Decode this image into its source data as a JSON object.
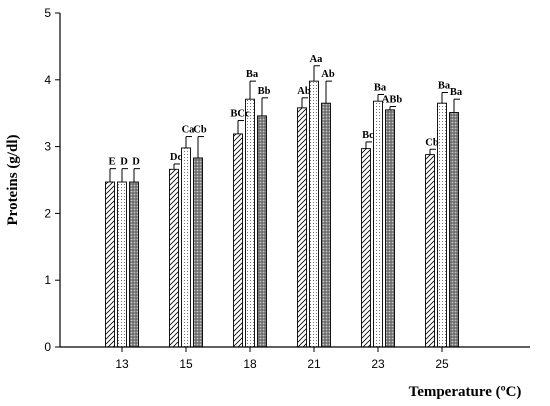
{
  "chart_data": {
    "type": "bar",
    "xlabel": "Temperature (ºC)",
    "ylabel": "Proteins (g/dl)",
    "ylim": [
      0,
      5
    ],
    "yticks": [
      0,
      1,
      2,
      3,
      4,
      5
    ],
    "categories": [
      "13",
      "15",
      "18",
      "21",
      "23",
      "25"
    ],
    "grid": false,
    "legend": "none",
    "series": [
      {
        "pattern": "diagonal-hatch",
        "values": [
          2.47,
          2.66,
          3.19,
          3.58,
          2.97,
          2.88
        ],
        "errors": [
          0.2,
          0.08,
          0.2,
          0.15,
          0.1,
          0.08
        ],
        "letters": [
          "E",
          "Dc",
          "BCc",
          "Ab",
          "Bc",
          "Cb"
        ]
      },
      {
        "pattern": "fine-dots",
        "values": [
          2.47,
          2.98,
          3.71,
          3.98,
          3.68,
          3.65
        ],
        "errors": [
          0.2,
          0.17,
          0.27,
          0.23,
          0.1,
          0.16
        ],
        "letters": [
          "D",
          "Ca",
          "Ba",
          "Aa",
          "Ba",
          "Ba"
        ]
      },
      {
        "pattern": "dark-dots",
        "values": [
          2.47,
          2.83,
          3.46,
          3.65,
          3.55,
          3.51
        ],
        "errors": [
          0.2,
          0.32,
          0.27,
          0.33,
          0.05,
          0.2
        ],
        "letters": [
          "D",
          "Cb",
          "Bb",
          "Ab",
          "ABb",
          "Ba"
        ]
      }
    ]
  }
}
